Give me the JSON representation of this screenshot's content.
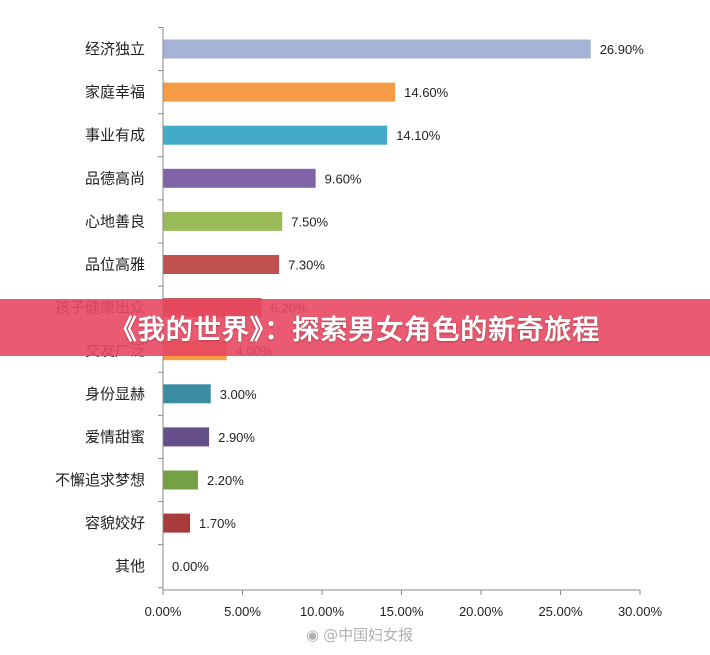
{
  "chart_data": {
    "type": "bar",
    "orientation": "horizontal",
    "categories": [
      "经济独立",
      "家庭幸福",
      "事业有成",
      "品德高尚",
      "心地善良",
      "品位高雅",
      "孩子健康出众",
      "交友广泛",
      "身份显赫",
      "爱情甜蜜",
      "不懈追求梦想",
      "容貌姣好",
      "其他"
    ],
    "values": [
      26.9,
      14.6,
      14.1,
      9.6,
      7.5,
      7.3,
      6.2,
      4.0,
      3.0,
      2.9,
      2.2,
      1.7,
      0.0
    ],
    "value_labels": [
      "26.90%",
      "14.60%",
      "14.10%",
      "9.60%",
      "7.50%",
      "7.30%",
      "6.20%",
      "4.00%",
      "3.00%",
      "2.90%",
      "2.20%",
      "1.70%",
      "0.00%"
    ],
    "colors": [
      "#a5b4d6",
      "#f59a45",
      "#43abc8",
      "#8064a8",
      "#9bbb59",
      "#c0504d",
      "#c0504d",
      "#f59a45",
      "#3a8ca3",
      "#654f8a",
      "#76a044",
      "#a83c3a",
      "#a5b4d6"
    ],
    "xlim": [
      0,
      30
    ],
    "x_ticks": [
      "0.00%",
      "5.00%",
      "10.00%",
      "15.00%",
      "20.00%",
      "25.00%",
      "30.00%"
    ],
    "grid": false,
    "title": "",
    "xlabel": "",
    "ylabel": ""
  },
  "banner": {
    "text": "《我的世界》：探索男女角色的新奇旅程"
  },
  "watermark": {
    "text": "@中国妇女报"
  }
}
